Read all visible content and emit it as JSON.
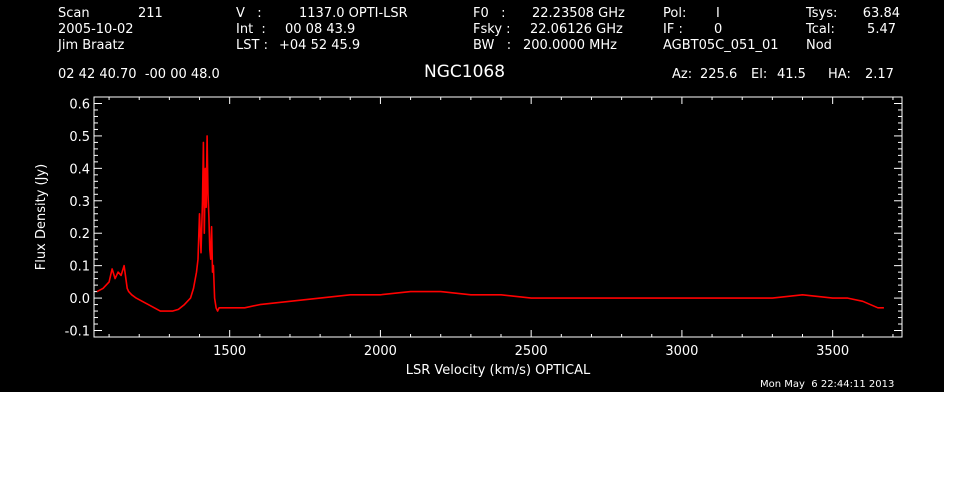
{
  "header": {
    "scan_label": "Scan",
    "scan_value": "211",
    "date": "2005-10-02",
    "observer": "Jim Braatz",
    "v_label": "V   :",
    "v_value": "1137.0 OPTI-LSR",
    "int_label": "Int  :",
    "int_value": "00 08 43.9",
    "lst_label": "LST :",
    "lst_value": "+04 52 45.9",
    "f0_label": "F0   :",
    "f0_value": "22.23508 GHz",
    "fsky_label": "Fsky :",
    "fsky_value": "22.06126 GHz",
    "bw_label": "BW   :",
    "bw_value": "200.0000 MHz",
    "pol_label": "Pol:",
    "pol_value": "I",
    "if_label": "IF :",
    "if_value": "0",
    "project": "AGBT05C_051_01",
    "tsys_label": "Tsys:",
    "tsys_value": "63.84",
    "tcal_label": "Tcal:",
    "tcal_value": "5.47",
    "mode": "Nod",
    "coords": "02 42 40.70  -00 00 48.0",
    "az_label": "Az:",
    "az_value": "225.6",
    "el_label": "El:",
    "el_value": "41.5",
    "ha_label": "HA:",
    "ha_value": "2.17"
  },
  "timestamp": "Mon May  6 22:44:11 2013",
  "colors": {
    "background": "#000000",
    "axes": "#ffffff",
    "trace": "#ff0000"
  },
  "chart_data": {
    "type": "line",
    "title": "NGC1068",
    "xlabel": "LSR Velocity (km/s) OPTICAL",
    "ylabel": "Flux Density (Jy)",
    "xlim": [
      1050,
      3730
    ],
    "ylim": [
      -0.12,
      0.62
    ],
    "xticks": [
      1500,
      2000,
      2500,
      3000,
      3500
    ],
    "xtick_labels": [
      "1500",
      "2000",
      "2500",
      "3000",
      "3500"
    ],
    "yticks": [
      -0.1,
      0.0,
      0.1,
      0.2,
      0.3,
      0.4,
      0.5,
      0.6
    ],
    "ytick_labels": [
      "-0.1",
      "0.0",
      "0.1",
      "0.2",
      "0.3",
      "0.4",
      "0.5",
      "0.6"
    ],
    "grid": false,
    "series": [
      {
        "color": "#ff0000",
        "x": [
          1060,
          1080,
          1100,
          1110,
          1120,
          1130,
          1140,
          1150,
          1160,
          1165,
          1175,
          1190,
          1210,
          1230,
          1250,
          1270,
          1290,
          1310,
          1330,
          1350,
          1370,
          1380,
          1390,
          1395,
          1400,
          1405,
          1410,
          1413,
          1416,
          1419,
          1422,
          1425,
          1428,
          1431,
          1434,
          1437,
          1440,
          1443,
          1446,
          1450,
          1455,
          1460,
          1465,
          1470,
          1480,
          1500,
          1550,
          1600,
          1700,
          1800,
          1900,
          2000,
          2100,
          2200,
          2300,
          2400,
          2500,
          2600,
          2700,
          2800,
          2900,
          3000,
          3100,
          3200,
          3300,
          3400,
          3500,
          3550,
          3600,
          3650,
          3670
        ],
        "y": [
          0.02,
          0.03,
          0.05,
          0.09,
          0.06,
          0.08,
          0.07,
          0.1,
          0.03,
          0.02,
          0.01,
          0.0,
          -0.01,
          -0.02,
          -0.03,
          -0.04,
          -0.04,
          -0.04,
          -0.035,
          -0.02,
          0.0,
          0.03,
          0.08,
          0.12,
          0.26,
          0.14,
          0.3,
          0.48,
          0.2,
          0.4,
          0.28,
          0.5,
          0.32,
          0.25,
          0.15,
          0.12,
          0.22,
          0.08,
          0.1,
          0.0,
          -0.03,
          -0.04,
          -0.03,
          -0.03,
          -0.03,
          -0.03,
          -0.03,
          -0.02,
          -0.01,
          0.0,
          0.01,
          0.01,
          0.02,
          0.02,
          0.01,
          0.01,
          0.0,
          0.0,
          0.0,
          0.0,
          0.0,
          0.0,
          0.0,
          0.0,
          0.0,
          0.01,
          0.0,
          0.0,
          -0.01,
          -0.03,
          -0.03
        ]
      }
    ]
  }
}
